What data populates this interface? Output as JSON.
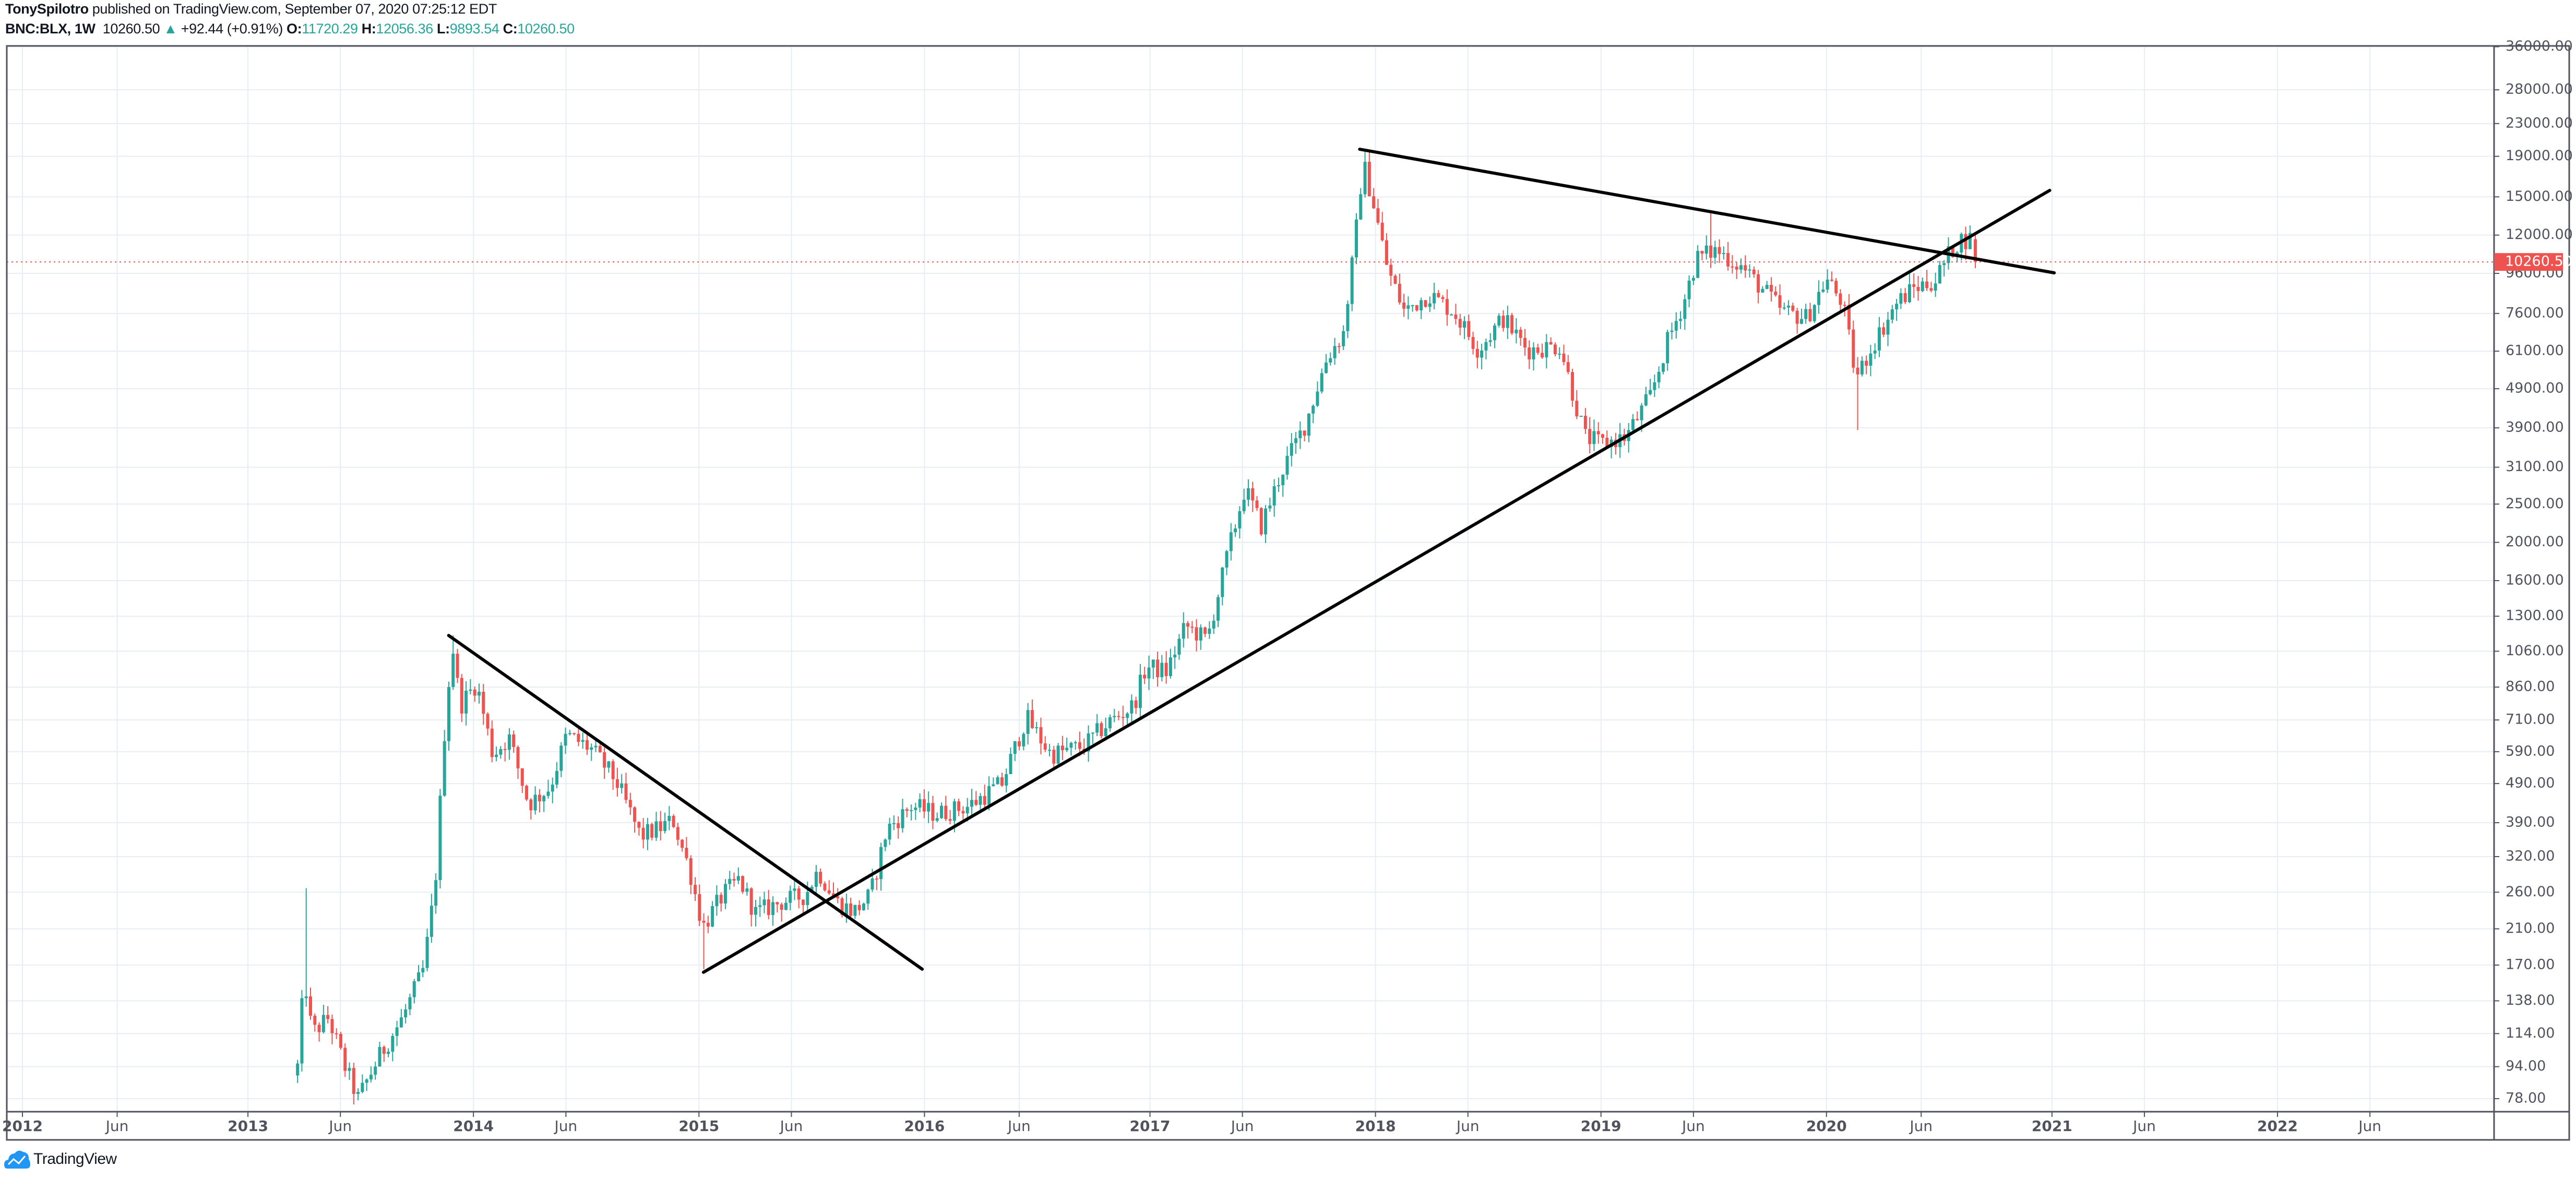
{
  "header": {
    "author": "TonySpilotro",
    "published_text": " published on TradingView.com, September 07, 2020 07:25:12 EDT",
    "symbol": "BNC:BLX, 1W",
    "last": "10260.50",
    "change": "+92.44 (+0.91%)",
    "o_label": "O:",
    "o_value": "11720.29",
    "h_label": "H:",
    "h_value": "12056.36",
    "l_label": "L:",
    "l_value": "9893.54",
    "c_label": "C:",
    "c_value": "10260.50"
  },
  "footer": {
    "brand": "TradingView"
  },
  "colors": {
    "up": "#26a69a",
    "down": "#ef5350",
    "grid": "#e6edf3",
    "axis": "#50535e",
    "trendline": "#000000",
    "brand": "#2196f3"
  },
  "chart_data": {
    "type": "candlestick",
    "title": "BNC:BLX, 1W",
    "yscale": "log",
    "ylim": [
      78,
      36000
    ],
    "xlim": [
      2012,
      2023
    ],
    "grid": true,
    "last_price": 10260.5,
    "last_price_label": "10260.50",
    "y_ticks": [
      "36000.00",
      "28000.00",
      "23000.00",
      "19000.00",
      "15000.00",
      "12000.00",
      "9600.00",
      "7600.00",
      "6100.00",
      "4900.00",
      "3900.00",
      "3100.00",
      "2500.00",
      "2000.00",
      "1600.00",
      "1300.00",
      "1060.00",
      "860.00",
      "710.00",
      "590.00",
      "490.00",
      "390.00",
      "320.00",
      "260.00",
      "210.00",
      "170.00",
      "138.00",
      "114.00",
      "94.00",
      "78.00"
    ],
    "x_ticks": [
      {
        "label": "2012",
        "t": 2012.0,
        "year": true
      },
      {
        "label": "Jun",
        "t": 2012.42,
        "year": false
      },
      {
        "label": "2013",
        "t": 2013.0,
        "year": true
      },
      {
        "label": "Jun",
        "t": 2013.41,
        "year": false
      },
      {
        "label": "2014",
        "t": 2014.0,
        "year": true
      },
      {
        "label": "Jun",
        "t": 2014.41,
        "year": false
      },
      {
        "label": "2015",
        "t": 2015.0,
        "year": true
      },
      {
        "label": "Jun",
        "t": 2015.41,
        "year": false
      },
      {
        "label": "2016",
        "t": 2016.0,
        "year": true
      },
      {
        "label": "Jun",
        "t": 2016.42,
        "year": false
      },
      {
        "label": "2017",
        "t": 2017.0,
        "year": true
      },
      {
        "label": "Jun",
        "t": 2017.41,
        "year": false
      },
      {
        "label": "2018",
        "t": 2018.0,
        "year": true
      },
      {
        "label": "Jun",
        "t": 2018.41,
        "year": false
      },
      {
        "label": "2019",
        "t": 2019.0,
        "year": true
      },
      {
        "label": "Jun",
        "t": 2019.41,
        "year": false
      },
      {
        "label": "2020",
        "t": 2020.0,
        "year": true
      },
      {
        "label": "Jun",
        "t": 2020.42,
        "year": false
      },
      {
        "label": "2021",
        "t": 2021.0,
        "year": true
      },
      {
        "label": "Jun",
        "t": 2021.41,
        "year": false
      },
      {
        "label": "2022",
        "t": 2022.0,
        "year": true
      },
      {
        "label": "Jun",
        "t": 2022.41,
        "year": false
      }
    ],
    "price_path": [
      [
        2013.22,
        94
      ],
      [
        2013.25,
        160
      ],
      [
        2013.284,
        114
      ],
      [
        2013.357,
        125
      ],
      [
        2013.43,
        94
      ],
      [
        2013.488,
        78
      ],
      [
        2013.575,
        98
      ],
      [
        2013.685,
        125
      ],
      [
        2013.779,
        166
      ],
      [
        2013.83,
        270
      ],
      [
        2013.881,
        807
      ],
      [
        2013.911,
        1080
      ],
      [
        2013.94,
        770
      ],
      [
        2014.013,
        880
      ],
      [
        2014.086,
        580
      ],
      [
        2014.158,
        640
      ],
      [
        2014.245,
        434
      ],
      [
        2014.34,
        480
      ],
      [
        2014.413,
        650
      ],
      [
        2014.522,
        600
      ],
      [
        2014.631,
        500
      ],
      [
        2014.741,
        360
      ],
      [
        2014.814,
        375
      ],
      [
        2014.886,
        395
      ],
      [
        2014.959,
        295
      ],
      [
        2015.017,
        212
      ],
      [
        2015.105,
        255
      ],
      [
        2015.178,
        280
      ],
      [
        2015.251,
        230
      ],
      [
        2015.36,
        245
      ],
      [
        2015.469,
        255
      ],
      [
        2015.527,
        295
      ],
      [
        2015.614,
        245
      ],
      [
        2015.687,
        232
      ],
      [
        2015.76,
        255
      ],
      [
        2015.833,
        375
      ],
      [
        2015.943,
        430
      ],
      [
        2016.052,
        410
      ],
      [
        2016.197,
        430
      ],
      [
        2016.343,
        490
      ],
      [
        2016.452,
        720
      ],
      [
        2016.561,
        580
      ],
      [
        2016.707,
        610
      ],
      [
        2016.817,
        700
      ],
      [
        2016.926,
        770
      ],
      [
        2016.984,
        970
      ],
      [
        2017.072,
        940
      ],
      [
        2017.159,
        1230
      ],
      [
        2017.253,
        1130
      ],
      [
        2017.348,
        1900
      ],
      [
        2017.421,
        2740
      ],
      [
        2017.494,
        2200
      ],
      [
        2017.581,
        3000
      ],
      [
        2017.69,
        4000
      ],
      [
        2017.785,
        5870
      ],
      [
        2017.858,
        6780
      ],
      [
        2017.909,
        11500
      ],
      [
        2017.945,
        18300
      ],
      [
        2017.989,
        14600
      ],
      [
        2018.055,
        9800
      ],
      [
        2018.128,
        7700
      ],
      [
        2018.237,
        8500
      ],
      [
        2018.346,
        7700
      ],
      [
        2018.456,
        6150
      ],
      [
        2018.565,
        7400
      ],
      [
        2018.674,
        6150
      ],
      [
        2018.82,
        6300
      ],
      [
        2018.878,
        4700
      ],
      [
        2018.929,
        3700
      ],
      [
        2019.002,
        3550
      ],
      [
        2019.111,
        3700
      ],
      [
        2019.22,
        4700
      ],
      [
        2019.293,
        6400
      ],
      [
        2019.366,
        8100
      ],
      [
        2019.424,
        10500
      ],
      [
        2019.512,
        11000
      ],
      [
        2019.621,
        10000
      ],
      [
        2019.73,
        8600
      ],
      [
        2019.803,
        7700
      ],
      [
        2019.912,
        7400
      ],
      [
        2019.999,
        9300
      ],
      [
        2020.072,
        8100
      ],
      [
        2020.131,
        5200
      ],
      [
        2020.204,
        6300
      ],
      [
        2020.313,
        8100
      ],
      [
        2020.386,
        8800
      ],
      [
        2020.481,
        9200
      ],
      [
        2020.554,
        11000
      ],
      [
        2020.597,
        11700
      ],
      [
        2020.641,
        11720.29
      ]
    ],
    "extreme_wicks": [
      {
        "t": 2013.25,
        "high": 266
      },
      {
        "t": 2013.911,
        "high": 1163
      },
      {
        "t": 2015.017,
        "low": 166
      },
      {
        "t": 2017.945,
        "high": 19800
      },
      {
        "t": 2019.49,
        "high": 13800
      },
      {
        "t": 2020.131,
        "low": 3850
      }
    ],
    "last_candle": {
      "open": 11720.29,
      "high": 12056.36,
      "low": 9893.54,
      "close": 10260.5
    },
    "trendlines": [
      {
        "name": "2014-descending",
        "from": [
          2013.89,
          1162
        ],
        "to": [
          2015.99,
          166
        ]
      },
      {
        "name": "long-term-ascending",
        "from": [
          2015.02,
          163
        ],
        "to": [
          2020.99,
          15577
        ]
      },
      {
        "name": "2018-descending",
        "from": [
          2017.93,
          19800
        ],
        "to": [
          2021.01,
          9630
        ]
      }
    ]
  }
}
